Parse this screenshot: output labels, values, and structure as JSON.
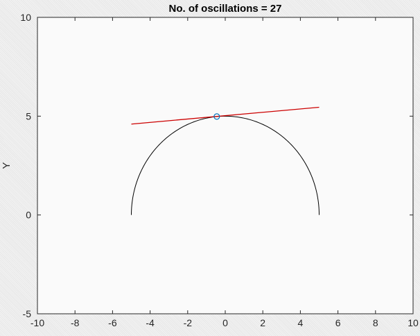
{
  "chart_data": {
    "type": "line",
    "title": "No. of oscillations = 27",
    "xlabel": "",
    "ylabel": "Y",
    "xlim": [
      -10,
      10
    ],
    "ylim": [
      -5,
      10
    ],
    "xticks": [
      -10,
      -8,
      -6,
      -4,
      -2,
      0,
      2,
      4,
      6,
      8,
      10
    ],
    "yticks": [
      -5,
      0,
      5,
      10
    ],
    "grid": false,
    "box": true,
    "series": [
      {
        "kind": "semicircle",
        "center": [
          0,
          0
        ],
        "radius": 5,
        "color": "#000000"
      },
      {
        "kind": "tangent-line",
        "x": [
          -5,
          5
        ],
        "y": [
          4.6,
          5.45
        ],
        "color": "#cc0000"
      },
      {
        "kind": "marker",
        "marker": "circle",
        "x": [
          -0.45
        ],
        "y": [
          4.98
        ],
        "color": "#0072bd"
      }
    ]
  }
}
